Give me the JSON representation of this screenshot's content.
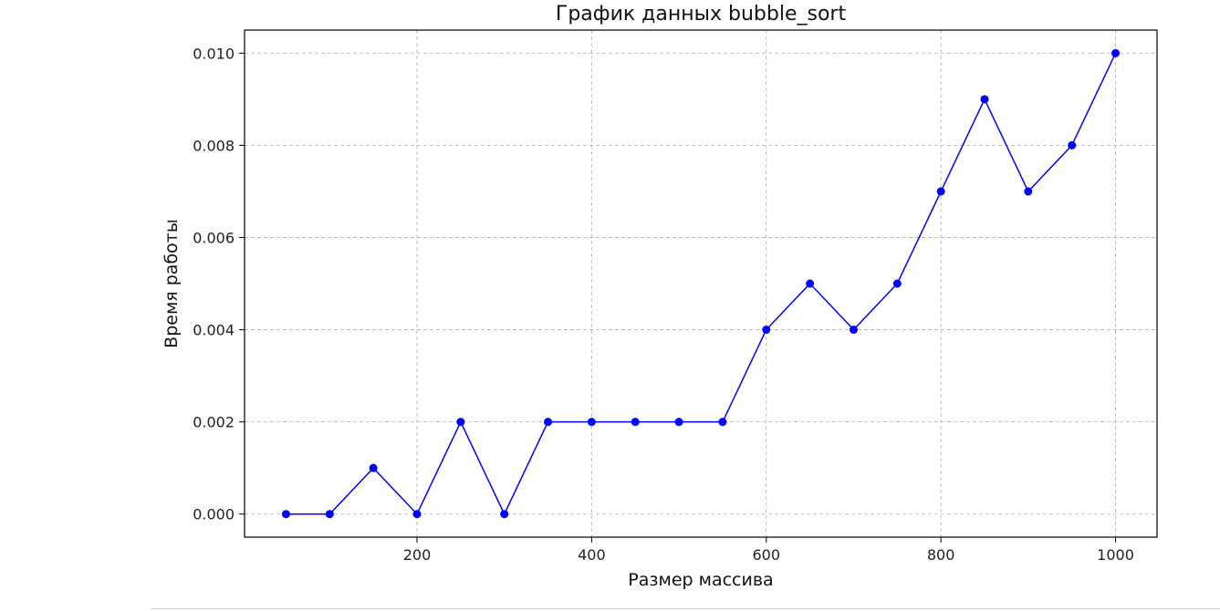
{
  "chart_data": {
    "type": "line",
    "title": "График данных bubble_sort",
    "xlabel": "Размер массива",
    "ylabel": "Время работы",
    "x": [
      50,
      100,
      150,
      200,
      250,
      300,
      350,
      400,
      450,
      500,
      550,
      600,
      650,
      700,
      750,
      800,
      850,
      900,
      950,
      1000
    ],
    "series": [
      {
        "values": [
          0.0,
          0.0,
          0.001,
          0.0,
          0.002,
          0.0,
          0.002,
          0.002,
          0.002,
          0.002,
          0.002,
          0.004,
          0.005,
          0.004,
          0.005,
          0.007,
          0.009,
          0.007,
          0.008,
          0.01
        ],
        "color": "#0000ff",
        "marker": "circle"
      }
    ],
    "xlim": [
      2.5,
      1047.5
    ],
    "ylim": [
      -0.0005,
      0.0105
    ],
    "xticks": [
      200,
      400,
      600,
      800,
      1000
    ],
    "xtick_labels": [
      "200",
      "400",
      "600",
      "800",
      "1000"
    ],
    "yticks": [
      0.0,
      0.002,
      0.004,
      0.006,
      0.008,
      0.01
    ],
    "ytick_labels": [
      "0.000",
      "0.002",
      "0.004",
      "0.006",
      "0.008",
      "0.010"
    ],
    "grid": true,
    "grid_style": "dashed",
    "legend": false
  }
}
